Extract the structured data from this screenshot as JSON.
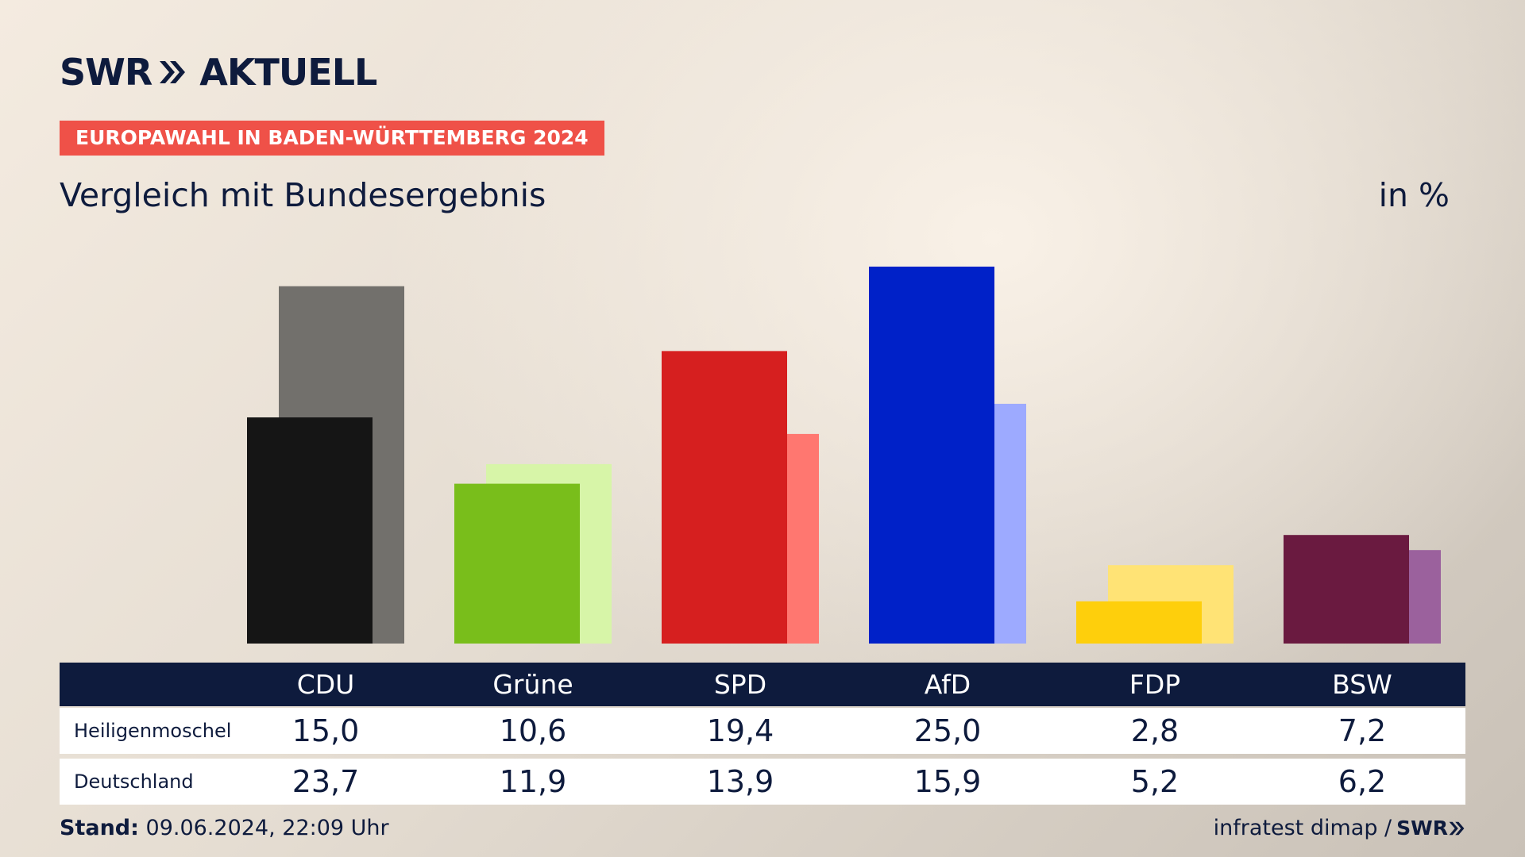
{
  "header": {
    "brand_left": "SWR",
    "brand_right": "AKTUELL",
    "tagline": "EUROPAWAHL IN BADEN-WÜRTTEMBERG 2024",
    "title": "Vergleich mit Bundesergebnis",
    "unit": "in %"
  },
  "table": {
    "parties": [
      "CDU",
      "Grüne",
      "SPD",
      "AfD",
      "FDP",
      "BSW"
    ],
    "rows": [
      {
        "label": "Heiligenmoschel",
        "values": [
          "15,0",
          "10,6",
          "19,4",
          "25,0",
          "2,8",
          "7,2"
        ]
      },
      {
        "label": "Deutschland",
        "values": [
          "23,7",
          "11,9",
          "13,9",
          "15,9",
          "5,2",
          "6,2"
        ]
      }
    ]
  },
  "footer": {
    "stand_label": "Stand:",
    "stand_value": "09.06.2024, 22:09 Uhr",
    "source": "infratest dimap /",
    "source_logo": "SWR"
  },
  "chart_data": {
    "type": "bar",
    "categories": [
      "CDU",
      "Grüne",
      "SPD",
      "AfD",
      "FDP",
      "BSW"
    ],
    "series": [
      {
        "name": "Heiligenmoschel",
        "values": [
          15.0,
          10.6,
          19.4,
          25.0,
          2.8,
          7.2
        ],
        "colors": [
          "#151515",
          "#79be1b",
          "#d61f1f",
          "#0021c8",
          "#fecf0c",
          "#6a1a40"
        ]
      },
      {
        "name": "Deutschland",
        "values": [
          23.7,
          11.9,
          13.9,
          15.9,
          5.2,
          6.2
        ],
        "colors": [
          "#72706c",
          "#d7f5a8",
          "#ff7770",
          "#9daaff",
          "#ffe375",
          "#9b619d"
        ]
      }
    ],
    "title": "Vergleich mit Bundesergebnis",
    "ylabel": "in %",
    "grid": false,
    "legend": "none"
  }
}
